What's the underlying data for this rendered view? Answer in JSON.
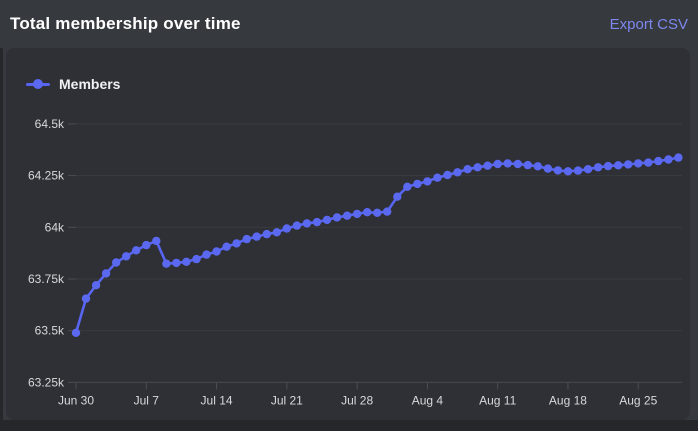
{
  "header": {
    "title": "Total membership over time",
    "export_label": "Export CSV"
  },
  "legend": {
    "label": "Members"
  },
  "colors": {
    "accent": "#5865f2",
    "dot": "#5b69f0",
    "link": "#7d88ef",
    "page_bg": "#36393e",
    "card_bg": "#2e3035",
    "grid": "#393b41",
    "tick": "#4b4d53",
    "axis_line": "#46484e",
    "axis_text": "#d8d9db",
    "title_text": "#ffffff"
  },
  "chart_data": {
    "type": "line",
    "title": "Total membership over time",
    "xlabel": "",
    "ylabel": "",
    "grid": true,
    "legend_position": "top-left",
    "ylim": [
      63250,
      64500
    ],
    "y_ticks": [
      63250,
      63500,
      63750,
      64000,
      64250,
      64500
    ],
    "y_tick_labels": [
      "63.25k",
      "63.5k",
      "63.75k",
      "64k",
      "64.25k",
      "64.5k"
    ],
    "x_tick_labels": [
      "Jun 30",
      "Jul 7",
      "Jul 14",
      "Jul 21",
      "Jul 28",
      "Aug 4",
      "Aug 11",
      "Aug 18",
      "Aug 25"
    ],
    "x_tick_indices": [
      0,
      7,
      14,
      21,
      28,
      35,
      42,
      49,
      56
    ],
    "dates": [
      "Jun 30",
      "Jul 1",
      "Jul 2",
      "Jul 3",
      "Jul 4",
      "Jul 5",
      "Jul 6",
      "Jul 7",
      "Jul 8",
      "Jul 9",
      "Jul 10",
      "Jul 11",
      "Jul 12",
      "Jul 13",
      "Jul 14",
      "Jul 15",
      "Jul 16",
      "Jul 17",
      "Jul 18",
      "Jul 19",
      "Jul 20",
      "Jul 21",
      "Jul 22",
      "Jul 23",
      "Jul 24",
      "Jul 25",
      "Jul 26",
      "Jul 27",
      "Jul 28",
      "Jul 29",
      "Jul 30",
      "Jul 31",
      "Aug 1",
      "Aug 2",
      "Aug 3",
      "Aug 4",
      "Aug 5",
      "Aug 6",
      "Aug 7",
      "Aug 8",
      "Aug 9",
      "Aug 10",
      "Aug 11",
      "Aug 12",
      "Aug 13",
      "Aug 14",
      "Aug 15",
      "Aug 16",
      "Aug 17",
      "Aug 18",
      "Aug 19",
      "Aug 20",
      "Aug 21",
      "Aug 22",
      "Aug 23",
      "Aug 24",
      "Aug 25",
      "Aug 26",
      "Aug 27",
      "Aug 28",
      "Aug 29"
    ],
    "series": [
      {
        "name": "Members",
        "values": [
          63490,
          63655,
          63720,
          63777,
          63830,
          63860,
          63889,
          63914,
          63934,
          63824,
          63828,
          63833,
          63846,
          63868,
          63883,
          63906,
          63922,
          63943,
          63955,
          63967,
          63976,
          63994,
          64008,
          64019,
          64025,
          64036,
          64048,
          64056,
          64065,
          64073,
          64070,
          64076,
          64148,
          64196,
          64210,
          64222,
          64240,
          64253,
          64266,
          64281,
          64290,
          64298,
          64306,
          64309,
          64306,
          64301,
          64295,
          64284,
          64275,
          64271,
          64274,
          64281,
          64290,
          64296,
          64300,
          64304,
          64309,
          64313,
          64320,
          64328,
          64337
        ]
      }
    ]
  }
}
